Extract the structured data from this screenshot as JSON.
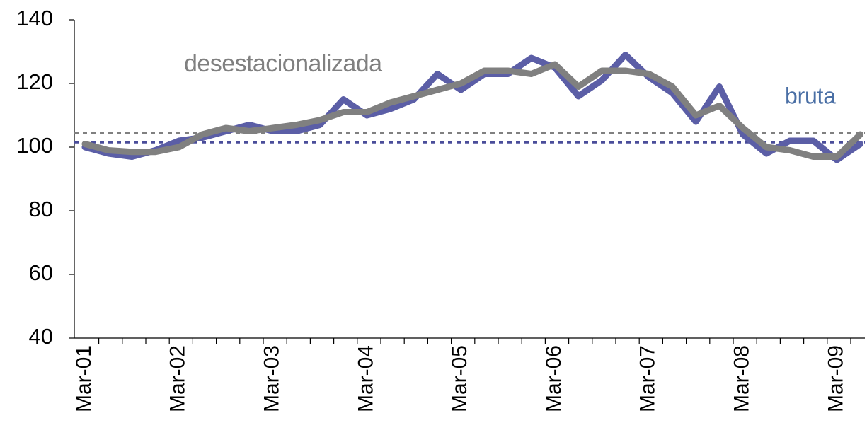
{
  "chart_data": {
    "type": "line",
    "categories": [
      "Mar-01",
      null,
      null,
      null,
      "Mar-02",
      null,
      null,
      null,
      "Mar-03",
      null,
      null,
      null,
      "Mar-04",
      null,
      null,
      null,
      "Mar-05",
      null,
      null,
      null,
      "Mar-06",
      null,
      null,
      null,
      "Mar-07",
      null,
      null,
      null,
      "Mar-08",
      null,
      null,
      null,
      "Mar-09",
      null
    ],
    "series": [
      {
        "name": "bruta",
        "color": "#5b5ea6",
        "values": [
          100,
          98,
          97,
          99,
          102,
          103,
          105,
          107,
          105,
          105,
          107,
          115,
          110,
          112,
          115,
          123,
          118,
          123,
          123,
          128,
          125,
          116,
          121,
          129,
          122,
          117,
          108,
          119,
          104,
          98,
          102,
          102,
          96,
          101
        ]
      },
      {
        "name": "desestacionalizada",
        "color": "#808080",
        "values": [
          101,
          99,
          98.5,
          98.5,
          100,
          104,
          106,
          105,
          106,
          107,
          108.5,
          111,
          111,
          114,
          116,
          118,
          120,
          124,
          124,
          123,
          126,
          119,
          124,
          124,
          123,
          119,
          110,
          113,
          106,
          100,
          99,
          97,
          97,
          104
        ]
      }
    ],
    "reference_lines": [
      {
        "value": 101.5,
        "color": "#4a4d9a"
      },
      {
        "value": 104.5,
        "color": "#808080"
      }
    ],
    "annotations": [
      {
        "text": "desestacionalizada",
        "color": "#808080"
      },
      {
        "text": "bruta",
        "color": "#4a6fa5"
      }
    ],
    "ylim": [
      40,
      140
    ],
    "yticks": [
      40,
      60,
      80,
      100,
      120,
      140
    ],
    "grid": false
  }
}
